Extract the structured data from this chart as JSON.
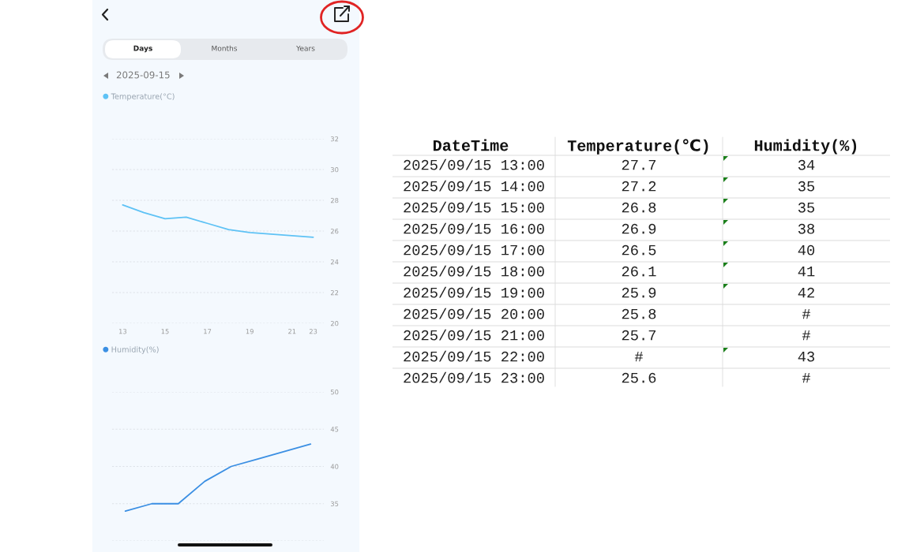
{
  "chart_data": [
    {
      "type": "line",
      "categories": [
        "13",
        null,
        "15",
        null,
        "17",
        null,
        "19",
        null,
        "21",
        "23"
      ],
      "series": [
        {
          "name": "Temperature(°C)",
          "color": "#5ec2f5",
          "values": [
            27.7,
            27.2,
            26.8,
            26.9,
            26.5,
            26.1,
            25.9,
            25.8,
            25.7,
            25.6
          ]
        }
      ],
      "ylim": [
        20,
        32
      ],
      "yticks": [
        20,
        22,
        24,
        26,
        28,
        30,
        32
      ],
      "grid": "y",
      "legend": "top left",
      "annotations": [
        "Days",
        "Months",
        "Years",
        "2025-09-15"
      ]
    },
    {
      "type": "line",
      "categories": [
        null,
        null,
        null,
        null,
        null,
        null,
        null,
        null
      ],
      "series": [
        {
          "name": "Humidity(%)",
          "color": "#3b8fe3",
          "values": [
            34,
            35,
            35,
            38,
            40,
            41,
            42,
            43
          ]
        }
      ],
      "ylim": [
        30,
        50
      ],
      "yticks": [
        {
          "value": 30,
          "label": null
        },
        35,
        40,
        45,
        50
      ],
      "grid": "y",
      "legend": "top left",
      "tick_labels": "y"
    },
    {
      "type": "other",
      "ylabel": "DateTime",
      "categories": [
        "Temperature(℃)",
        "Humidity(%)"
      ],
      "y_categories": [
        "2025/09/15 13:00",
        "2025/09/15 14:00",
        "2025/09/15 15:00",
        "2025/09/15 16:00",
        "2025/09/15 17:00",
        "2025/09/15 18:00",
        "2025/09/15 19:00",
        "2025/09/15 20:00",
        "2025/09/15 21:00",
        "2025/09/15 22:00",
        "2025/09/15 23:00"
      ],
      "cell_labels": [
        [
          "27.7",
          "34"
        ],
        [
          "27.2",
          "35"
        ],
        [
          "26.8",
          "35"
        ],
        [
          "26.9",
          "38"
        ],
        [
          "26.5",
          "40"
        ],
        [
          "26.1",
          "41"
        ],
        [
          "25.9",
          "42"
        ],
        [
          "25.8",
          "#"
        ],
        [
          "25.7",
          "#"
        ],
        [
          "#",
          "43"
        ],
        [
          "25.6",
          "#"
        ]
      ]
    }
  ]
}
